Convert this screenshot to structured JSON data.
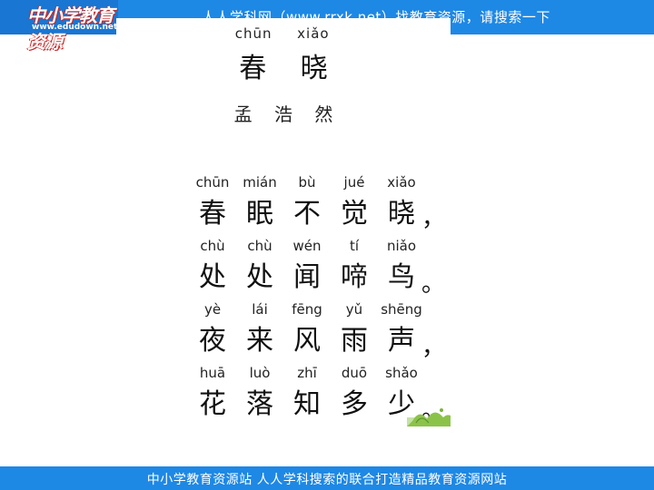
{
  "header": {
    "logo_text": "中小学教育资源",
    "logo_url": "www.edudown.net",
    "banner": "人人学科网（www.rrxk.net）找教育资源，请搜索一下"
  },
  "poem": {
    "title_pinyin": [
      "chūn",
      "xiǎo"
    ],
    "title": [
      "春",
      "晓"
    ],
    "author": [
      "孟",
      "浩",
      "然"
    ],
    "lines": [
      {
        "pinyin": [
          "chūn",
          "mián",
          "bù",
          "jué",
          "xiǎo"
        ],
        "chars": [
          "春",
          "眠",
          "不",
          "觉",
          "晓"
        ],
        "punct": "，"
      },
      {
        "pinyin": [
          "chù",
          "chù",
          "wén",
          "tí",
          "niǎo"
        ],
        "chars": [
          "处",
          "处",
          "闻",
          "啼",
          "鸟"
        ],
        "punct": "。"
      },
      {
        "pinyin": [
          "yè",
          "lái",
          "fēng",
          "yǔ",
          "shēng"
        ],
        "chars": [
          "夜",
          "来",
          "风",
          "雨",
          "声"
        ],
        "punct": "，"
      },
      {
        "pinyin": [
          "huā",
          "luò",
          "zhī",
          "duō",
          "shǎo"
        ],
        "chars": [
          "花",
          "落",
          "知",
          "多",
          "少"
        ],
        "punct": "。"
      }
    ]
  },
  "footer": {
    "text": "中小学教育资源站 人人学科搜索的联合打造精品教育资源网站"
  },
  "colors": {
    "bar_blue": "#1e88e5",
    "logo_blue": "#1976d2"
  }
}
